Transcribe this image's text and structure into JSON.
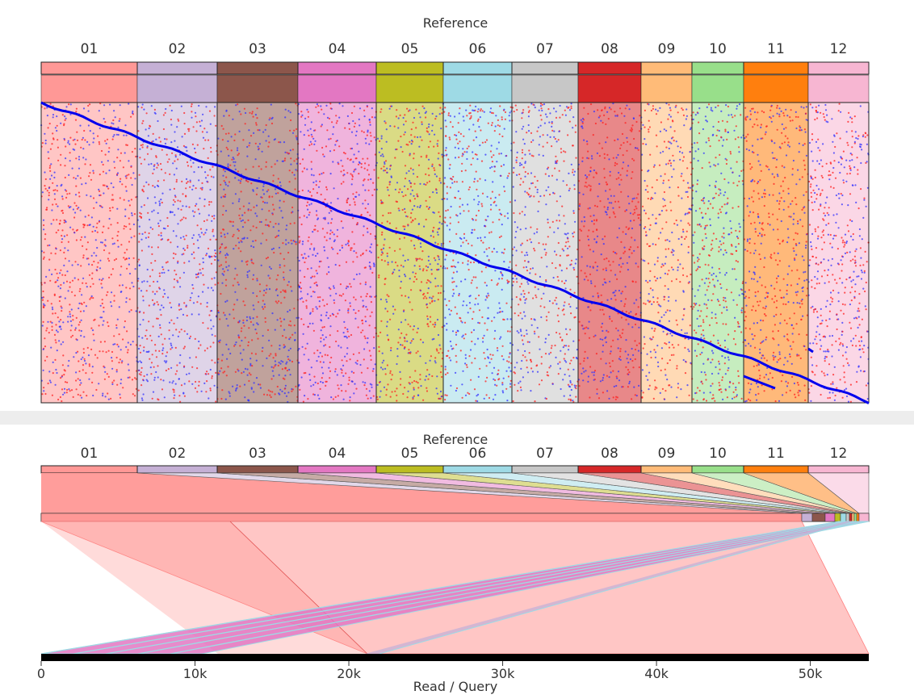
{
  "reference_title": "Reference",
  "query_title": "Read / Query",
  "chromosomes": [
    {
      "label": "01",
      "color": "#ff9896"
    },
    {
      "label": "02",
      "color": "#c5b0d5"
    },
    {
      "label": "03",
      "color": "#8c564b"
    },
    {
      "label": "04",
      "color": "#e377c2"
    },
    {
      "label": "05",
      "color": "#bcbd22"
    },
    {
      "label": "06",
      "color": "#9edae5"
    },
    {
      "label": "07",
      "color": "#c7c7c7"
    },
    {
      "label": "08",
      "color": "#d62728"
    },
    {
      "label": "09",
      "color": "#ffbb78"
    },
    {
      "label": "10",
      "color": "#98df8a"
    },
    {
      "label": "11",
      "color": "#ff7f0e"
    },
    {
      "label": "12",
      "color": "#f7b6d2"
    }
  ],
  "query_axis": {
    "ticks": [
      {
        "value": 0,
        "label": "0"
      },
      {
        "value": 10000,
        "label": "10k"
      },
      {
        "value": 20000,
        "label": "20k"
      },
      {
        "value": 30000,
        "label": "30k"
      },
      {
        "value": 40000,
        "label": "40k"
      },
      {
        "value": 50000,
        "label": "50k"
      }
    ],
    "max": 53800
  },
  "colors": {
    "dot_forward": "#ff2020",
    "dot_reverse": "#3333ff",
    "diagonal": "#0000ee",
    "forward_band": "#ff9896",
    "reverse_band": "#e377c2",
    "read_bar": "#000000",
    "separator": "#ededed"
  }
}
